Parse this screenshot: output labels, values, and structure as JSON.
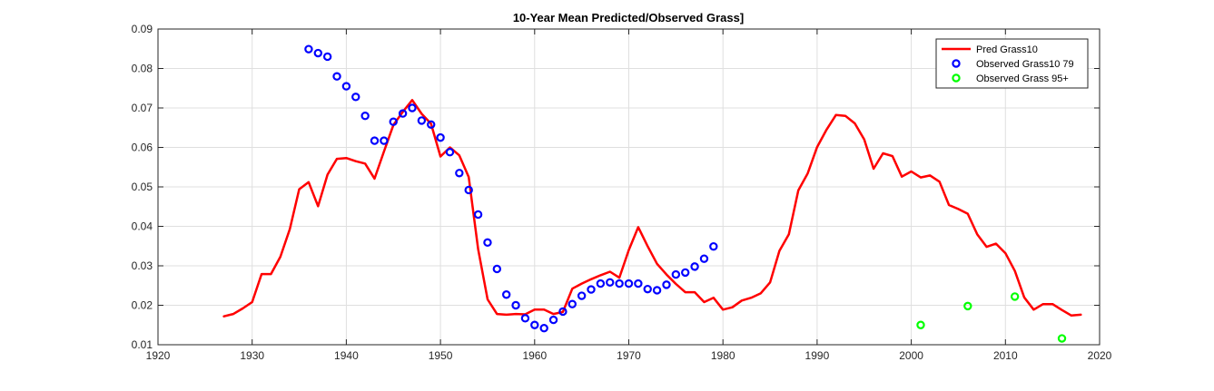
{
  "chart_data": {
    "type": "line",
    "title": "10-Year Mean Predicted/Observed Grass]",
    "xlabel": "",
    "ylabel": "",
    "xlim": [
      1920,
      2020
    ],
    "ylim": [
      0.01,
      0.09
    ],
    "xticks": [
      1920,
      1930,
      1940,
      1950,
      1960,
      1970,
      1980,
      1990,
      2000,
      2010,
      2020
    ],
    "yticks": [
      0.01,
      0.02,
      0.03,
      0.04,
      0.05,
      0.06,
      0.07,
      0.08,
      0.09
    ],
    "xtick_labels": [
      "1920",
      "1930",
      "1940",
      "1950",
      "1960",
      "1970",
      "1980",
      "1990",
      "2000",
      "2010",
      "2020"
    ],
    "ytick_labels": [
      "0.01",
      "0.02",
      "0.03",
      "0.04",
      "0.05",
      "0.06",
      "0.07",
      "0.08",
      "0.09"
    ],
    "grid": true,
    "legend_position": "top-right",
    "series": [
      {
        "name": "Pred Grass10",
        "type": "line",
        "color": "#ff0000",
        "x": [
          1927,
          1928,
          1929,
          1930,
          1931,
          1932,
          1933,
          1934,
          1935,
          1936,
          1937,
          1938,
          1939,
          1940,
          1941,
          1942,
          1943,
          1944,
          1945,
          1946,
          1947,
          1948,
          1949,
          1950,
          1951,
          1952,
          1953,
          1954,
          1955,
          1956,
          1957,
          1958,
          1959,
          1960,
          1961,
          1962,
          1963,
          1964,
          1965,
          1966,
          1967,
          1968,
          1969,
          1970,
          1971,
          1972,
          1973,
          1974,
          1975,
          1976,
          1977,
          1978,
          1979,
          1980,
          1981,
          1982,
          1983,
          1984,
          1985,
          1986,
          1987,
          1988,
          1989,
          1990,
          1991,
          1992,
          1993,
          1994,
          1995,
          1996,
          1997,
          1998,
          1999,
          2000,
          2001,
          2002,
          2003,
          2004,
          2005,
          2006,
          2007,
          2008,
          2009,
          2010,
          2011,
          2012,
          2013,
          2014,
          2015,
          2016,
          2017,
          2018
        ],
        "values": [
          0.0172,
          0.0178,
          0.0192,
          0.0208,
          0.0279,
          0.0279,
          0.0323,
          0.0393,
          0.0494,
          0.0512,
          0.0451,
          0.0531,
          0.0571,
          0.0573,
          0.0565,
          0.0559,
          0.0521,
          0.059,
          0.0657,
          0.069,
          0.072,
          0.0685,
          0.066,
          0.0577,
          0.06,
          0.058,
          0.0525,
          0.0342,
          0.0215,
          0.0178,
          0.0176,
          0.0178,
          0.0177,
          0.0189,
          0.0189,
          0.0178,
          0.0183,
          0.0242,
          0.0255,
          0.0266,
          0.0276,
          0.0285,
          0.027,
          0.034,
          0.0398,
          0.035,
          0.0305,
          0.0278,
          0.0254,
          0.0233,
          0.0233,
          0.0208,
          0.0219,
          0.0189,
          0.0195,
          0.0212,
          0.0219,
          0.023,
          0.0258,
          0.0338,
          0.038,
          0.0491,
          0.0534,
          0.0601,
          0.0645,
          0.0682,
          0.068,
          0.0661,
          0.062,
          0.0546,
          0.0585,
          0.0578,
          0.0526,
          0.0539,
          0.0524,
          0.0529,
          0.0513,
          0.0454,
          0.0444,
          0.0432,
          0.038,
          0.0348,
          0.0356,
          0.0332,
          0.0287,
          0.022,
          0.0189,
          0.0203,
          0.0203,
          0.0188,
          0.0174,
          0.0176
        ]
      },
      {
        "name": "Observed Grass10 79",
        "type": "scatter",
        "color": "#0000ff",
        "x": [
          1936,
          1937,
          1938,
          1939,
          1940,
          1941,
          1942,
          1943,
          1944,
          1945,
          1946,
          1947,
          1948,
          1949,
          1950,
          1951,
          1952,
          1953,
          1954,
          1955,
          1956,
          1957,
          1958,
          1959,
          1960,
          1961,
          1962,
          1963,
          1964,
          1965,
          1966,
          1967,
          1968,
          1969,
          1970,
          1971,
          1972,
          1973,
          1974,
          1975,
          1976,
          1977,
          1978,
          1979
        ],
        "values": [
          0.0849,
          0.0839,
          0.083,
          0.078,
          0.0755,
          0.0728,
          0.068,
          0.0617,
          0.0617,
          0.0665,
          0.0686,
          0.07,
          0.0668,
          0.0658,
          0.0625,
          0.0588,
          0.0535,
          0.0492,
          0.043,
          0.0359,
          0.0292,
          0.0227,
          0.02,
          0.0167,
          0.015,
          0.0142,
          0.0163,
          0.0184,
          0.0203,
          0.0224,
          0.024,
          0.0255,
          0.0258,
          0.0255,
          0.0255,
          0.0255,
          0.0241,
          0.0238,
          0.0252,
          0.0278,
          0.0283,
          0.0298,
          0.0318,
          0.0349
        ]
      },
      {
        "name": "Observed Grass 95+",
        "type": "scatter",
        "color": "#00ff00",
        "x": [
          2001,
          2006,
          2011,
          2016
        ],
        "values": [
          0.015,
          0.0198,
          0.0222,
          0.0116
        ]
      }
    ]
  },
  "colors": {
    "background": "#ffffff",
    "axis": "#262626",
    "grid": "#dfdfdf"
  }
}
